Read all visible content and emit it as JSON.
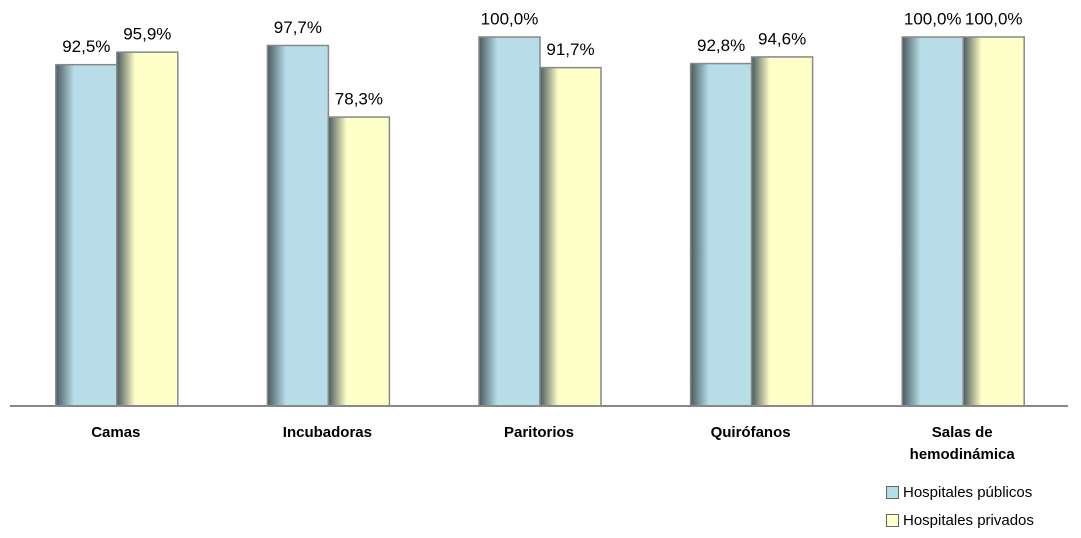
{
  "chart_data": {
    "type": "bar",
    "categories": [
      "Camas",
      "Incubadoras",
      "Paritorios",
      "Quirófanos",
      "Salas de hemodinámica"
    ],
    "series": [
      {
        "name": "Hospitales públicos",
        "color": "#b7dde8",
        "values": [
          92.5,
          97.7,
          100.0,
          92.8,
          100.0
        ],
        "value_labels": [
          "92,5%",
          "97,7%",
          "100,0%",
          "92,8%",
          "100,0%"
        ]
      },
      {
        "name": "Hospitales privados",
        "color": "#ffffc8",
        "values": [
          95.9,
          78.3,
          91.7,
          94.6,
          100.0
        ],
        "value_labels": [
          "95,9%",
          "78,3%",
          "91,7%",
          "94,6%",
          "100,0%"
        ]
      }
    ],
    "ylim": [
      0,
      100
    ],
    "legend": "bottom-right"
  }
}
